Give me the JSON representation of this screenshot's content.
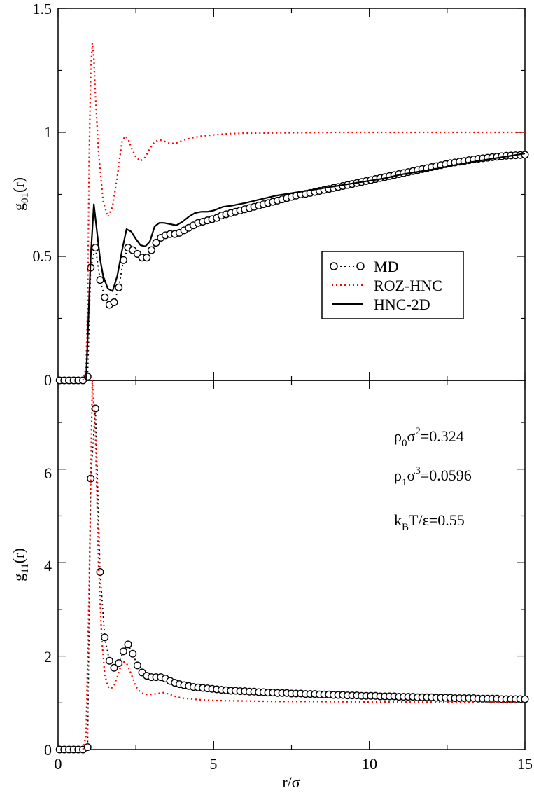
{
  "colors": {
    "md": "#000000",
    "roz_hnc": "#ff0000",
    "hnc_2d": "#000000",
    "axes": "#000000",
    "background": "#ffffff"
  },
  "xlabel": "r/σ",
  "x_ticks": [
    "0",
    "5",
    "10",
    "15"
  ],
  "legend": {
    "md": "MD",
    "roz_hnc": "ROZ-HNC",
    "hnc_2d": "HNC-2D"
  },
  "annotations": {
    "rho0": {
      "base": "ρ",
      "sub": "0",
      "mid": "σ",
      "sup": "2",
      "value": "=0.324"
    },
    "rho1": {
      "base": "ρ",
      "sub": "1",
      "mid": "σ",
      "sup": "3",
      "value": "=0.0596"
    },
    "temp": {
      "base": "k",
      "sub": "B",
      "value": "T/ε=0.55"
    }
  },
  "top_panel": {
    "ylabel": {
      "base": "g",
      "sub": "01",
      "arg": "(r)"
    },
    "y_ticks": [
      "0",
      "0.5",
      "1",
      "1.5"
    ]
  },
  "bottom_panel": {
    "ylabel": {
      "base": "g",
      "sub": "11",
      "arg": "(r)"
    },
    "y_ticks": [
      "0",
      "2",
      "4",
      "6"
    ]
  },
  "chart_data": [
    {
      "type": "line",
      "panel": "top",
      "xlabel": "r/σ",
      "ylabel": "g01(r)",
      "xlim": [
        0,
        15
      ],
      "ylim": [
        0,
        1.5
      ],
      "series": [
        {
          "name": "MD",
          "style": "dotted line with open circles",
          "x": [
            0.05,
            0.2,
            0.35,
            0.5,
            0.65,
            0.8,
            0.95,
            1.05,
            1.2,
            1.35,
            1.5,
            1.65,
            1.8,
            1.95,
            2.1,
            2.25,
            2.4,
            2.55,
            2.7,
            2.85,
            3.0,
            3.15,
            3.3,
            3.45,
            3.6,
            3.75,
            3.9,
            4.05,
            4.2,
            4.35,
            4.5,
            4.65,
            4.8,
            4.95,
            5.1,
            5.25,
            5.4,
            5.55,
            5.7,
            5.85,
            6.0,
            6.15,
            6.3,
            6.45,
            6.6,
            6.75,
            6.9,
            7.05,
            7.2,
            7.35,
            7.5,
            7.65,
            7.8,
            7.95,
            8.1,
            8.25,
            8.4,
            8.55,
            8.7,
            8.85,
            9.0,
            9.15,
            9.3,
            9.45,
            9.6,
            9.75,
            9.9,
            10.05,
            10.2,
            10.35,
            10.5,
            10.65,
            10.8,
            10.95,
            11.1,
            11.25,
            11.4,
            11.55,
            11.7,
            11.85,
            12.0,
            12.15,
            12.3,
            12.45,
            12.6,
            12.75,
            12.9,
            13.05,
            13.2,
            13.35,
            13.5,
            13.65,
            13.8,
            13.95,
            14.1,
            14.25,
            14.4,
            14.55,
            14.7,
            14.85,
            15.0
          ],
          "y": [
            0.0,
            0.0,
            0.0,
            0.0,
            0.0,
            0.0,
            0.015,
            0.455,
            0.535,
            0.405,
            0.335,
            0.305,
            0.315,
            0.375,
            0.485,
            0.535,
            0.525,
            0.51,
            0.495,
            0.495,
            0.525,
            0.555,
            0.575,
            0.585,
            0.59,
            0.59,
            0.595,
            0.605,
            0.615,
            0.625,
            0.635,
            0.64,
            0.645,
            0.65,
            0.655,
            0.665,
            0.67,
            0.675,
            0.68,
            0.685,
            0.69,
            0.695,
            0.7,
            0.705,
            0.71,
            0.715,
            0.72,
            0.725,
            0.73,
            0.735,
            0.74,
            0.745,
            0.75,
            0.752,
            0.756,
            0.76,
            0.764,
            0.768,
            0.772,
            0.776,
            0.78,
            0.784,
            0.788,
            0.792,
            0.796,
            0.8,
            0.804,
            0.808,
            0.812,
            0.816,
            0.82,
            0.824,
            0.828,
            0.832,
            0.836,
            0.84,
            0.844,
            0.848,
            0.852,
            0.856,
            0.86,
            0.864,
            0.868,
            0.872,
            0.876,
            0.879,
            0.882,
            0.885,
            0.888,
            0.891,
            0.894,
            0.896,
            0.898,
            0.9,
            0.902,
            0.904,
            0.906,
            0.907,
            0.908,
            0.909,
            0.91
          ]
        },
        {
          "name": "ROZ-HNC",
          "style": "red dotted line",
          "x": [
            0.8,
            0.9,
            0.95,
            1.0,
            1.05,
            1.1,
            1.15,
            1.2,
            1.3,
            1.45,
            1.6,
            1.75,
            1.9,
            2.05,
            2.15,
            2.25,
            2.35,
            2.5,
            2.65,
            2.8,
            2.95,
            3.1,
            3.25,
            3.4,
            3.6,
            3.8,
            4.0,
            4.3,
            4.6,
            5.0,
            5.5,
            6.0,
            7.0,
            8.0,
            9.0,
            10.0,
            11.0,
            12.0,
            13.0,
            14.0,
            15.0
          ],
          "y": [
            0.0,
            0.05,
            0.3,
            0.9,
            1.25,
            1.36,
            1.3,
            1.15,
            0.92,
            0.72,
            0.66,
            0.7,
            0.82,
            0.96,
            0.985,
            0.975,
            0.94,
            0.9,
            0.885,
            0.9,
            0.935,
            0.962,
            0.97,
            0.965,
            0.955,
            0.957,
            0.968,
            0.978,
            0.985,
            0.99,
            0.995,
            0.997,
            0.998,
            0.999,
            1.0,
            1.0,
            1.0,
            1.0,
            1.0,
            1.0,
            1.0
          ]
        },
        {
          "name": "HNC-2D",
          "style": "solid black line",
          "x": [
            0.9,
            1.05,
            1.15,
            1.25,
            1.35,
            1.45,
            1.6,
            1.75,
            1.9,
            2.05,
            2.2,
            2.35,
            2.5,
            2.65,
            2.8,
            2.95,
            3.1,
            3.25,
            3.4,
            3.6,
            3.8,
            4.0,
            4.2,
            4.4,
            4.6,
            4.8,
            5.0,
            5.3,
            5.6,
            6.0,
            6.5,
            7.0,
            7.5,
            8.0,
            8.5,
            9.0,
            9.5,
            10.0,
            10.5,
            11.0,
            11.5,
            12.0,
            12.5,
            13.0,
            13.5,
            14.0,
            14.5,
            15.0
          ],
          "y": [
            0.0,
            0.5,
            0.71,
            0.6,
            0.49,
            0.42,
            0.37,
            0.36,
            0.42,
            0.52,
            0.61,
            0.6,
            0.57,
            0.545,
            0.54,
            0.56,
            0.62,
            0.635,
            0.635,
            0.63,
            0.625,
            0.64,
            0.66,
            0.675,
            0.68,
            0.68,
            0.685,
            0.7,
            0.705,
            0.715,
            0.73,
            0.745,
            0.755,
            0.765,
            0.775,
            0.785,
            0.795,
            0.805,
            0.815,
            0.83,
            0.84,
            0.85,
            0.862,
            0.874,
            0.885,
            0.895,
            0.905,
            0.915
          ]
        }
      ]
    },
    {
      "type": "line",
      "panel": "bottom",
      "xlabel": "r/σ",
      "ylabel": "g11(r)",
      "xlim": [
        0,
        15
      ],
      "ylim": [
        0,
        7.9
      ],
      "series": [
        {
          "name": "MD",
          "style": "dotted line with open circles",
          "x": [
            0.05,
            0.2,
            0.35,
            0.5,
            0.65,
            0.8,
            0.95,
            1.05,
            1.2,
            1.35,
            1.5,
            1.65,
            1.8,
            1.95,
            2.1,
            2.25,
            2.4,
            2.55,
            2.7,
            2.85,
            3.0,
            3.15,
            3.3,
            3.45,
            3.6,
            3.75,
            3.9,
            4.05,
            4.2,
            4.35,
            4.5,
            4.65,
            4.8,
            4.95,
            5.1,
            5.25,
            5.4,
            5.55,
            5.7,
            5.85,
            6.0,
            6.15,
            6.3,
            6.45,
            6.6,
            6.75,
            6.9,
            7.05,
            7.2,
            7.35,
            7.5,
            7.65,
            7.8,
            7.95,
            8.1,
            8.25,
            8.4,
            8.55,
            8.7,
            8.85,
            9.0,
            9.15,
            9.3,
            9.45,
            9.6,
            9.75,
            9.9,
            10.05,
            10.2,
            10.35,
            10.5,
            10.65,
            10.8,
            10.95,
            11.1,
            11.25,
            11.4,
            11.55,
            11.7,
            11.85,
            12.0,
            12.15,
            12.3,
            12.45,
            12.6,
            12.75,
            12.9,
            13.05,
            13.2,
            13.35,
            13.5,
            13.65,
            13.8,
            13.95,
            14.1,
            14.25,
            14.4,
            14.55,
            14.7,
            14.85,
            15.0
          ],
          "y": [
            0.0,
            0.0,
            0.0,
            0.0,
            0.0,
            0.0,
            0.05,
            5.8,
            7.3,
            3.8,
            2.4,
            1.9,
            1.75,
            1.85,
            2.1,
            2.25,
            2.05,
            1.8,
            1.65,
            1.58,
            1.55,
            1.55,
            1.55,
            1.52,
            1.47,
            1.43,
            1.4,
            1.38,
            1.36,
            1.34,
            1.33,
            1.32,
            1.31,
            1.3,
            1.29,
            1.28,
            1.27,
            1.26,
            1.26,
            1.25,
            1.25,
            1.24,
            1.24,
            1.23,
            1.23,
            1.22,
            1.22,
            1.21,
            1.21,
            1.21,
            1.2,
            1.2,
            1.2,
            1.19,
            1.19,
            1.19,
            1.18,
            1.18,
            1.18,
            1.17,
            1.17,
            1.17,
            1.16,
            1.16,
            1.16,
            1.15,
            1.15,
            1.15,
            1.15,
            1.14,
            1.14,
            1.14,
            1.14,
            1.13,
            1.13,
            1.13,
            1.13,
            1.12,
            1.12,
            1.12,
            1.12,
            1.11,
            1.11,
            1.11,
            1.11,
            1.1,
            1.1,
            1.1,
            1.1,
            1.1,
            1.09,
            1.09,
            1.09,
            1.09,
            1.09,
            1.08,
            1.08,
            1.08,
            1.08,
            1.08,
            1.08
          ]
        },
        {
          "name": "ROZ-HNC",
          "style": "red dotted line",
          "x": [
            0.8,
            0.9,
            1.0,
            1.1,
            1.2,
            1.3,
            1.4,
            1.5,
            1.6,
            1.7,
            1.8,
            1.9,
            2.0,
            2.1,
            2.2,
            2.35,
            2.5,
            2.65,
            2.8,
            3.0,
            3.2,
            3.4,
            3.6,
            3.8,
            4.0,
            4.5,
            5.0,
            6.0,
            7.0,
            8.0,
            10.0,
            12.0,
            14.0,
            15.0
          ],
          "y": [
            0.0,
            0.3,
            3.5,
            7.9,
            6.8,
            4.0,
            2.4,
            1.6,
            1.35,
            1.3,
            1.38,
            1.55,
            1.75,
            1.88,
            1.85,
            1.62,
            1.35,
            1.22,
            1.18,
            1.18,
            1.2,
            1.22,
            1.18,
            1.13,
            1.1,
            1.07,
            1.05,
            1.04,
            1.03,
            1.03,
            1.02,
            1.02,
            1.02,
            1.02
          ]
        }
      ]
    }
  ]
}
